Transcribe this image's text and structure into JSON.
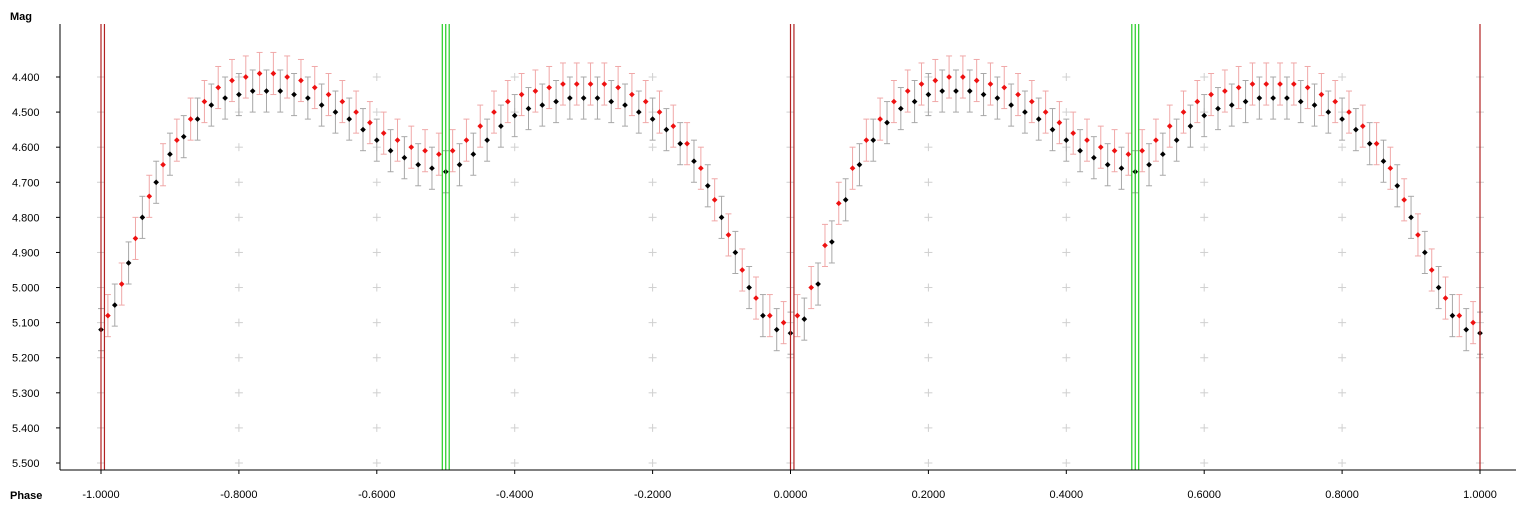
{
  "chart_data": {
    "type": "scatter",
    "title": "",
    "xlabel": "Phase",
    "ylabel": "Mag",
    "xlim": [
      -1.02,
      1.03
    ],
    "ylim": [
      5.52,
      4.25
    ],
    "y_inverted": true,
    "x_ticks": [
      -1.0,
      -0.8,
      -0.6,
      -0.4,
      -0.2,
      0.0,
      0.2,
      0.4,
      0.6,
      0.8,
      1.0
    ],
    "x_tick_labels": [
      "-1.0000",
      "-0.8000",
      "-0.6000",
      "-0.4000",
      "-0.2000",
      "0.0000",
      "0.2000",
      "0.4000",
      "0.6000",
      "0.8000",
      "1.0000"
    ],
    "y_ticks": [
      4.4,
      4.5,
      4.6,
      4.7,
      4.8,
      4.9,
      5.0,
      5.1,
      5.2,
      5.3,
      5.4,
      5.5
    ],
    "y_tick_labels": [
      "4.400",
      "4.500",
      "4.600",
      "4.700",
      "4.800",
      "4.900",
      "5.000",
      "5.100",
      "5.200",
      "5.300",
      "5.400",
      "5.500"
    ],
    "grid": "crosshair-markers",
    "legend": "none",
    "primary_minima_lines": [
      -1.0,
      -0.995,
      0.0,
      0.005,
      1.0
    ],
    "secondary_minima_lines": [
      -0.505,
      -0.5,
      -0.495,
      0.495,
      0.5,
      0.505
    ],
    "minimum_line_color": "#b22222",
    "secondary_line_color": "#22cc22",
    "series": [
      {
        "color": "#000000",
        "errorbar_color": "#a8a8a8",
        "error_typical": 0.06,
        "points": [
          [
            -1.0,
            5.12
          ],
          [
            -0.98,
            5.05
          ],
          [
            -0.96,
            4.93
          ],
          [
            -0.94,
            4.8
          ],
          [
            -0.92,
            4.7
          ],
          [
            -0.9,
            4.62
          ],
          [
            -0.88,
            4.57
          ],
          [
            -0.86,
            4.52
          ],
          [
            -0.84,
            4.48
          ],
          [
            -0.82,
            4.46
          ],
          [
            -0.8,
            4.45
          ],
          [
            -0.78,
            4.44
          ],
          [
            -0.76,
            4.44
          ],
          [
            -0.74,
            4.44
          ],
          [
            -0.72,
            4.45
          ],
          [
            -0.7,
            4.46
          ],
          [
            -0.68,
            4.48
          ],
          [
            -0.66,
            4.5
          ],
          [
            -0.64,
            4.52
          ],
          [
            -0.62,
            4.55
          ],
          [
            -0.6,
            4.58
          ],
          [
            -0.58,
            4.61
          ],
          [
            -0.56,
            4.63
          ],
          [
            -0.54,
            4.65
          ],
          [
            -0.52,
            4.66
          ],
          [
            -0.5,
            4.67
          ],
          [
            -0.48,
            4.65
          ],
          [
            -0.46,
            4.62
          ],
          [
            -0.44,
            4.58
          ],
          [
            -0.42,
            4.54
          ],
          [
            -0.4,
            4.51
          ],
          [
            -0.38,
            4.49
          ],
          [
            -0.36,
            4.48
          ],
          [
            -0.34,
            4.47
          ],
          [
            -0.32,
            4.46
          ],
          [
            -0.3,
            4.46
          ],
          [
            -0.28,
            4.46
          ],
          [
            -0.26,
            4.47
          ],
          [
            -0.24,
            4.48
          ],
          [
            -0.22,
            4.5
          ],
          [
            -0.2,
            4.52
          ],
          [
            -0.18,
            4.55
          ],
          [
            -0.16,
            4.59
          ],
          [
            -0.14,
            4.64
          ],
          [
            -0.12,
            4.71
          ],
          [
            -0.1,
            4.8
          ],
          [
            -0.08,
            4.9
          ],
          [
            -0.06,
            5.0
          ],
          [
            -0.04,
            5.08
          ],
          [
            -0.02,
            5.12
          ],
          [
            0.0,
            5.13
          ],
          [
            0.02,
            5.09
          ],
          [
            0.04,
            4.99
          ],
          [
            0.06,
            4.87
          ],
          [
            0.08,
            4.75
          ],
          [
            0.1,
            4.65
          ],
          [
            0.12,
            4.58
          ],
          [
            0.14,
            4.53
          ],
          [
            0.16,
            4.49
          ],
          [
            0.18,
            4.47
          ],
          [
            0.2,
            4.45
          ],
          [
            0.22,
            4.44
          ],
          [
            0.24,
            4.44
          ],
          [
            0.26,
            4.44
          ],
          [
            0.28,
            4.45
          ],
          [
            0.3,
            4.46
          ],
          [
            0.32,
            4.48
          ],
          [
            0.34,
            4.5
          ],
          [
            0.36,
            4.52
          ],
          [
            0.38,
            4.55
          ],
          [
            0.4,
            4.58
          ],
          [
            0.42,
            4.61
          ],
          [
            0.44,
            4.63
          ],
          [
            0.46,
            4.65
          ],
          [
            0.48,
            4.66
          ],
          [
            0.5,
            4.67
          ],
          [
            0.52,
            4.65
          ],
          [
            0.54,
            4.62
          ],
          [
            0.56,
            4.58
          ],
          [
            0.58,
            4.54
          ],
          [
            0.6,
            4.51
          ],
          [
            0.62,
            4.49
          ],
          [
            0.64,
            4.48
          ],
          [
            0.66,
            4.47
          ],
          [
            0.68,
            4.46
          ],
          [
            0.7,
            4.46
          ],
          [
            0.72,
            4.46
          ],
          [
            0.74,
            4.47
          ],
          [
            0.76,
            4.48
          ],
          [
            0.78,
            4.5
          ],
          [
            0.8,
            4.52
          ],
          [
            0.82,
            4.55
          ],
          [
            0.84,
            4.59
          ],
          [
            0.86,
            4.64
          ],
          [
            0.88,
            4.71
          ],
          [
            0.9,
            4.8
          ],
          [
            0.92,
            4.9
          ],
          [
            0.94,
            5.0
          ],
          [
            0.96,
            5.08
          ],
          [
            0.98,
            5.12
          ],
          [
            1.0,
            5.13
          ]
        ]
      },
      {
        "color": "#ee1111",
        "errorbar_color": "#f0a8a8",
        "error_typical": 0.06,
        "points": [
          [
            -0.99,
            5.08
          ],
          [
            -0.97,
            4.99
          ],
          [
            -0.95,
            4.86
          ],
          [
            -0.93,
            4.74
          ],
          [
            -0.91,
            4.65
          ],
          [
            -0.89,
            4.58
          ],
          [
            -0.87,
            4.52
          ],
          [
            -0.85,
            4.47
          ],
          [
            -0.83,
            4.43
          ],
          [
            -0.81,
            4.41
          ],
          [
            -0.79,
            4.4
          ],
          [
            -0.77,
            4.39
          ],
          [
            -0.75,
            4.39
          ],
          [
            -0.73,
            4.4
          ],
          [
            -0.71,
            4.41
          ],
          [
            -0.69,
            4.43
          ],
          [
            -0.67,
            4.45
          ],
          [
            -0.65,
            4.47
          ],
          [
            -0.63,
            4.5
          ],
          [
            -0.61,
            4.53
          ],
          [
            -0.59,
            4.56
          ],
          [
            -0.57,
            4.58
          ],
          [
            -0.55,
            4.6
          ],
          [
            -0.53,
            4.61
          ],
          [
            -0.51,
            4.62
          ],
          [
            -0.49,
            4.61
          ],
          [
            -0.47,
            4.58
          ],
          [
            -0.45,
            4.54
          ],
          [
            -0.43,
            4.5
          ],
          [
            -0.41,
            4.47
          ],
          [
            -0.39,
            4.45
          ],
          [
            -0.37,
            4.44
          ],
          [
            -0.35,
            4.43
          ],
          [
            -0.33,
            4.42
          ],
          [
            -0.31,
            4.42
          ],
          [
            -0.29,
            4.42
          ],
          [
            -0.27,
            4.42
          ],
          [
            -0.25,
            4.43
          ],
          [
            -0.23,
            4.45
          ],
          [
            -0.21,
            4.47
          ],
          [
            -0.19,
            4.5
          ],
          [
            -0.17,
            4.54
          ],
          [
            -0.15,
            4.59
          ],
          [
            -0.13,
            4.66
          ],
          [
            -0.11,
            4.75
          ],
          [
            -0.09,
            4.85
          ],
          [
            -0.07,
            4.95
          ],
          [
            -0.05,
            5.03
          ],
          [
            -0.03,
            5.08
          ],
          [
            -0.01,
            5.1
          ],
          [
            0.01,
            5.08
          ],
          [
            0.03,
            5.0
          ],
          [
            0.05,
            4.88
          ],
          [
            0.07,
            4.76
          ],
          [
            0.09,
            4.66
          ],
          [
            0.11,
            4.58
          ],
          [
            0.13,
            4.52
          ],
          [
            0.15,
            4.47
          ],
          [
            0.17,
            4.44
          ],
          [
            0.19,
            4.42
          ],
          [
            0.21,
            4.41
          ],
          [
            0.23,
            4.4
          ],
          [
            0.25,
            4.4
          ],
          [
            0.27,
            4.41
          ],
          [
            0.29,
            4.42
          ],
          [
            0.31,
            4.43
          ],
          [
            0.33,
            4.45
          ],
          [
            0.35,
            4.47
          ],
          [
            0.37,
            4.5
          ],
          [
            0.39,
            4.53
          ],
          [
            0.41,
            4.56
          ],
          [
            0.43,
            4.58
          ],
          [
            0.45,
            4.6
          ],
          [
            0.47,
            4.61
          ],
          [
            0.49,
            4.62
          ],
          [
            0.51,
            4.61
          ],
          [
            0.53,
            4.58
          ],
          [
            0.55,
            4.54
          ],
          [
            0.57,
            4.5
          ],
          [
            0.59,
            4.47
          ],
          [
            0.61,
            4.45
          ],
          [
            0.63,
            4.44
          ],
          [
            0.65,
            4.43
          ],
          [
            0.67,
            4.42
          ],
          [
            0.69,
            4.42
          ],
          [
            0.71,
            4.42
          ],
          [
            0.73,
            4.42
          ],
          [
            0.75,
            4.43
          ],
          [
            0.77,
            4.45
          ],
          [
            0.79,
            4.47
          ],
          [
            0.81,
            4.5
          ],
          [
            0.83,
            4.54
          ],
          [
            0.85,
            4.59
          ],
          [
            0.87,
            4.66
          ],
          [
            0.89,
            4.75
          ],
          [
            0.91,
            4.85
          ],
          [
            0.93,
            4.95
          ],
          [
            0.95,
            5.03
          ],
          [
            0.97,
            5.08
          ],
          [
            0.99,
            5.1
          ]
        ]
      }
    ]
  }
}
